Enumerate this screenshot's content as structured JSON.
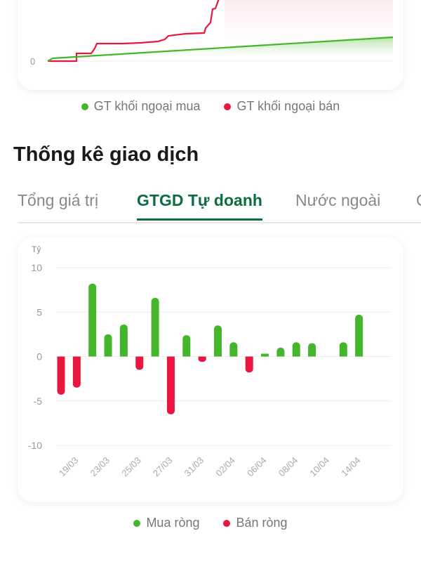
{
  "top_chart": {
    "y_tick_label": "0",
    "colors": {
      "buy": "#44b62b",
      "sell": "#e8173f"
    },
    "legend": [
      {
        "label": "GT khối ngoại mua",
        "color": "#44b62b"
      },
      {
        "label": "GT khối ngoại bán",
        "color": "#e8173f"
      }
    ]
  },
  "section_title": "Thống kê giao dịch",
  "tabs": [
    {
      "label": "Tổng giá trị",
      "active": false
    },
    {
      "label": "GTGD Tự doanh",
      "active": true
    },
    {
      "label": "Nước ngoài",
      "active": false
    },
    {
      "label": "C",
      "active": false
    }
  ],
  "chart_data": {
    "type": "bar",
    "ylabel": "Tỷ",
    "ylim": [
      -10,
      10
    ],
    "yticks": [
      10,
      5,
      0,
      -5,
      -10
    ],
    "grid": true,
    "categories": [
      "",
      "19/03",
      "",
      "23/03",
      "",
      "25/03",
      "",
      "27/03",
      "",
      "31/03",
      "",
      "02/04",
      "",
      "06/04",
      "",
      "08/04",
      "",
      "10/04",
      "",
      "14/04"
    ],
    "values": [
      -4.3,
      -3.5,
      8.2,
      2.5,
      3.6,
      -1.5,
      6.6,
      -6.5,
      2.4,
      -0.6,
      3.5,
      1.6,
      -1.8,
      0.3,
      1.0,
      1.6,
      1.5,
      0,
      1.6,
      4.7
    ],
    "colors": {
      "positive": "#44b62b",
      "negative": "#e8173f"
    },
    "legend": [
      {
        "label": "Mua ròng",
        "color": "#44b62b"
      },
      {
        "label": "Bán ròng",
        "color": "#e8173f"
      }
    ],
    "legend_placement": "bottom"
  }
}
